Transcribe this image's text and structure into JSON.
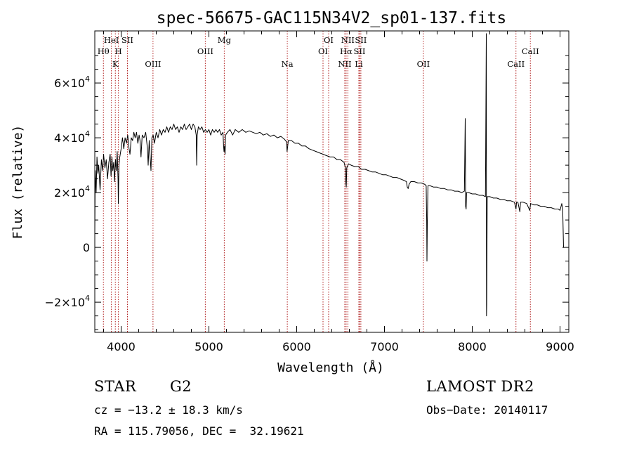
{
  "chart_data": {
    "type": "line",
    "title": "spec-56675-GAC115N34V2_sp01-137.fits",
    "xlabel": "Wavelength (Å)",
    "ylabel": "Flux (relative)",
    "xlim": [
      3700,
      9100
    ],
    "ylim": [
      -31000,
      79000
    ],
    "x_ticks": [
      4000,
      5000,
      6000,
      7000,
      8000,
      9000
    ],
    "y_ticks": [
      {
        "value": 60000,
        "base": "6×10",
        "exp": "4"
      },
      {
        "value": 40000,
        "base": "4×10",
        "exp": "4"
      },
      {
        "value": 20000,
        "base": "2×10",
        "exp": "4"
      },
      {
        "value": 0,
        "base": "0",
        "exp": ""
      },
      {
        "value": -20000,
        "base": "−2×10",
        "exp": "4"
      }
    ],
    "grid": false,
    "series": [
      {
        "color": "#000000",
        "points": [
          [
            3700,
            5000
          ],
          [
            3705,
            28000
          ],
          [
            3715,
            20000
          ],
          [
            3725,
            33000
          ],
          [
            3735,
            27000
          ],
          [
            3745,
            30000
          ],
          [
            3760,
            21000
          ],
          [
            3775,
            32000
          ],
          [
            3790,
            28000
          ],
          [
            3800,
            34000
          ],
          [
            3815,
            29000
          ],
          [
            3830,
            32000
          ],
          [
            3845,
            25000
          ],
          [
            3860,
            31000
          ],
          [
            3875,
            34000
          ],
          [
            3885,
            26000
          ],
          [
            3895,
            33000
          ],
          [
            3905,
            28000
          ],
          [
            3915,
            31000
          ],
          [
            3925,
            24000
          ],
          [
            3935,
            32000
          ],
          [
            3945,
            28000
          ],
          [
            3955,
            35000
          ],
          [
            3965,
            25000
          ],
          [
            3968,
            16000
          ],
          [
            3975,
            30000
          ],
          [
            3985,
            33000
          ],
          [
            4000,
            36000
          ],
          [
            4015,
            40000
          ],
          [
            4030,
            36000
          ],
          [
            4045,
            40000
          ],
          [
            4060,
            38000
          ],
          [
            4075,
            41000
          ],
          [
            4090,
            36000
          ],
          [
            4101,
            34000
          ],
          [
            4115,
            40000
          ],
          [
            4130,
            39000
          ],
          [
            4145,
            42000
          ],
          [
            4160,
            40000
          ],
          [
            4175,
            42000
          ],
          [
            4190,
            38000
          ],
          [
            4205,
            41000
          ],
          [
            4215,
            39000
          ],
          [
            4226,
            33000
          ],
          [
            4240,
            41000
          ],
          [
            4260,
            40000
          ],
          [
            4280,
            42000
          ],
          [
            4300,
            36000
          ],
          [
            4308,
            30000
          ],
          [
            4320,
            39000
          ],
          [
            4330,
            33000
          ],
          [
            4340,
            28000
          ],
          [
            4350,
            40000
          ],
          [
            4365,
            41000
          ],
          [
            4380,
            38000
          ],
          [
            4400,
            42000
          ],
          [
            4420,
            40000
          ],
          [
            4440,
            43000
          ],
          [
            4460,
            41000
          ],
          [
            4480,
            43000
          ],
          [
            4500,
            42000
          ],
          [
            4520,
            44000
          ],
          [
            4540,
            42000
          ],
          [
            4560,
            44000
          ],
          [
            4580,
            43000
          ],
          [
            4600,
            45000
          ],
          [
            4620,
            43000
          ],
          [
            4640,
            44000
          ],
          [
            4660,
            42000
          ],
          [
            4680,
            44000
          ],
          [
            4700,
            43000
          ],
          [
            4720,
            45000
          ],
          [
            4740,
            43000
          ],
          [
            4760,
            44000
          ],
          [
            4780,
            45000
          ],
          [
            4800,
            43000
          ],
          [
            4820,
            45000
          ],
          [
            4840,
            44000
          ],
          [
            4855,
            41000
          ],
          [
            4861,
            30000
          ],
          [
            4866,
            41000
          ],
          [
            4880,
            44000
          ],
          [
            4900,
            43000
          ],
          [
            4920,
            44000
          ],
          [
            4940,
            42000
          ],
          [
            4960,
            43000
          ],
          [
            4980,
            42000
          ],
          [
            5000,
            43000
          ],
          [
            5020,
            41000
          ],
          [
            5040,
            43000
          ],
          [
            5060,
            42000
          ],
          [
            5080,
            43000
          ],
          [
            5100,
            42000
          ],
          [
            5120,
            43000
          ],
          [
            5140,
            41000
          ],
          [
            5160,
            42000
          ],
          [
            5167,
            37000
          ],
          [
            5172,
            35000
          ],
          [
            5178,
            37000
          ],
          [
            5184,
            34000
          ],
          [
            5190,
            41000
          ],
          [
            5210,
            42000
          ],
          [
            5240,
            43000
          ],
          [
            5270,
            41000
          ],
          [
            5300,
            43000
          ],
          [
            5340,
            42000
          ],
          [
            5380,
            43000
          ],
          [
            5420,
            42000
          ],
          [
            5460,
            42500
          ],
          [
            5500,
            42000
          ],
          [
            5540,
            41500
          ],
          [
            5580,
            42000
          ],
          [
            5620,
            41000
          ],
          [
            5660,
            41500
          ],
          [
            5700,
            40500
          ],
          [
            5740,
            41000
          ],
          [
            5780,
            40000
          ],
          [
            5820,
            40500
          ],
          [
            5860,
            39500
          ],
          [
            5885,
            38500
          ],
          [
            5890,
            35000
          ],
          [
            5896,
            36500
          ],
          [
            5905,
            39000
          ],
          [
            5940,
            39000
          ],
          [
            5980,
            38000
          ],
          [
            6020,
            38000
          ],
          [
            6060,
            37000
          ],
          [
            6100,
            37000
          ],
          [
            6140,
            36000
          ],
          [
            6180,
            35500
          ],
          [
            6220,
            35000
          ],
          [
            6260,
            34500
          ],
          [
            6300,
            34000
          ],
          [
            6340,
            33500
          ],
          [
            6380,
            33000
          ],
          [
            6420,
            33000
          ],
          [
            6460,
            32000
          ],
          [
            6500,
            32000
          ],
          [
            6540,
            31000
          ],
          [
            6555,
            29000
          ],
          [
            6560,
            23500
          ],
          [
            6565,
            22000
          ],
          [
            6570,
            29000
          ],
          [
            6590,
            30500
          ],
          [
            6620,
            30000
          ],
          [
            6660,
            29500
          ],
          [
            6700,
            29500
          ],
          [
            6740,
            28500
          ],
          [
            6780,
            28500
          ],
          [
            6820,
            28000
          ],
          [
            6860,
            27500
          ],
          [
            6900,
            27500
          ],
          [
            6940,
            27000
          ],
          [
            6980,
            26500
          ],
          [
            7020,
            26500
          ],
          [
            7060,
            26000
          ],
          [
            7100,
            25500
          ],
          [
            7140,
            25500
          ],
          [
            7180,
            25000
          ],
          [
            7220,
            24500
          ],
          [
            7250,
            24000
          ],
          [
            7260,
            22000
          ],
          [
            7270,
            21500
          ],
          [
            7280,
            23000
          ],
          [
            7300,
            24000
          ],
          [
            7340,
            24000
          ],
          [
            7380,
            23500
          ],
          [
            7420,
            23500
          ],
          [
            7460,
            23000
          ],
          [
            7475,
            22500
          ],
          [
            7481,
            10000
          ],
          [
            7484,
            -5000
          ],
          [
            7488,
            8000
          ],
          [
            7495,
            22500
          ],
          [
            7520,
            22500
          ],
          [
            7560,
            22000
          ],
          [
            7600,
            22000
          ],
          [
            7640,
            21500
          ],
          [
            7680,
            21500
          ],
          [
            7720,
            21000
          ],
          [
            7760,
            21000
          ],
          [
            7800,
            20500
          ],
          [
            7840,
            20500
          ],
          [
            7880,
            20000
          ],
          [
            7910,
            20500
          ],
          [
            7920,
            47000
          ],
          [
            7925,
            15000
          ],
          [
            7930,
            14000
          ],
          [
            7935,
            20000
          ],
          [
            7960,
            20000
          ],
          [
            8000,
            19500
          ],
          [
            8040,
            19500
          ],
          [
            8080,
            19000
          ],
          [
            8120,
            19000
          ],
          [
            8150,
            18500
          ],
          [
            8160,
            78000
          ],
          [
            8162,
            -25000
          ],
          [
            8165,
            -21000
          ],
          [
            8170,
            18500
          ],
          [
            8200,
            18500
          ],
          [
            8240,
            18000
          ],
          [
            8280,
            18000
          ],
          [
            8320,
            17500
          ],
          [
            8360,
            17500
          ],
          [
            8400,
            17000
          ],
          [
            8440,
            17000
          ],
          [
            8480,
            16500
          ],
          [
            8498,
            14000
          ],
          [
            8505,
            16500
          ],
          [
            8520,
            16500
          ],
          [
            8542,
            13000
          ],
          [
            8550,
            16500
          ],
          [
            8580,
            16500
          ],
          [
            8620,
            16000
          ],
          [
            8655,
            13500
          ],
          [
            8665,
            16000
          ],
          [
            8700,
            15500
          ],
          [
            8740,
            15500
          ],
          [
            8780,
            15000
          ],
          [
            8820,
            15000
          ],
          [
            8860,
            14500
          ],
          [
            8900,
            14500
          ],
          [
            8940,
            14000
          ],
          [
            8980,
            14000
          ],
          [
            9000,
            13500
          ],
          [
            9020,
            16000
          ],
          [
            9030,
            14000
          ],
          [
            9040,
            0
          ],
          [
            9045,
            0
          ]
        ]
      }
    ],
    "lines": [
      {
        "wave": 3798,
        "label": "Hθ",
        "row": 2
      },
      {
        "wave": 3889,
        "label": "HeI",
        "row": 1
      },
      {
        "wave": 3934,
        "label": "K",
        "row": 3
      },
      {
        "wave": 3969,
        "label": "H",
        "row": 2
      },
      {
        "wave": 4072,
        "label": "SII",
        "row": 1
      },
      {
        "wave": 4363,
        "label": "OIII",
        "row": 3
      },
      {
        "wave": 4959,
        "label": "OIII",
        "row": 2
      },
      {
        "wave": 5175,
        "label": "Mg",
        "row": 1
      },
      {
        "wave": 5893,
        "label": "Na",
        "row": 3
      },
      {
        "wave": 6300,
        "label": "OI",
        "row": 2
      },
      {
        "wave": 6364,
        "label": "OI",
        "row": 1
      },
      {
        "wave": 6548,
        "label": "NII",
        "row": 3
      },
      {
        "wave": 6563,
        "label": "Hα",
        "row": 2
      },
      {
        "wave": 6583,
        "label": "NII",
        "row": 1
      },
      {
        "wave": 6708,
        "label": "Li",
        "row": 3
      },
      {
        "wave": 6716,
        "label": "SII",
        "row": 2
      },
      {
        "wave": 6731,
        "label": "SII",
        "row": 1
      },
      {
        "wave": 7443,
        "label": "OII",
        "row": 3
      },
      {
        "wave": 8498,
        "label": "CaII",
        "row": 3
      },
      {
        "wave": 8662,
        "label": "CaII",
        "row": 2
      }
    ],
    "marker_color": "#b22222",
    "line_color": "#000000"
  },
  "info": {
    "class_label": "STAR",
    "subclass": "G2",
    "survey": "LAMOST DR2",
    "cz": "cz = −13.2 ± 18.3 km/s",
    "obs_date": "Obs−Date: 20140117",
    "coords": "RA = 115.79056, DEC =  32.19621"
  }
}
